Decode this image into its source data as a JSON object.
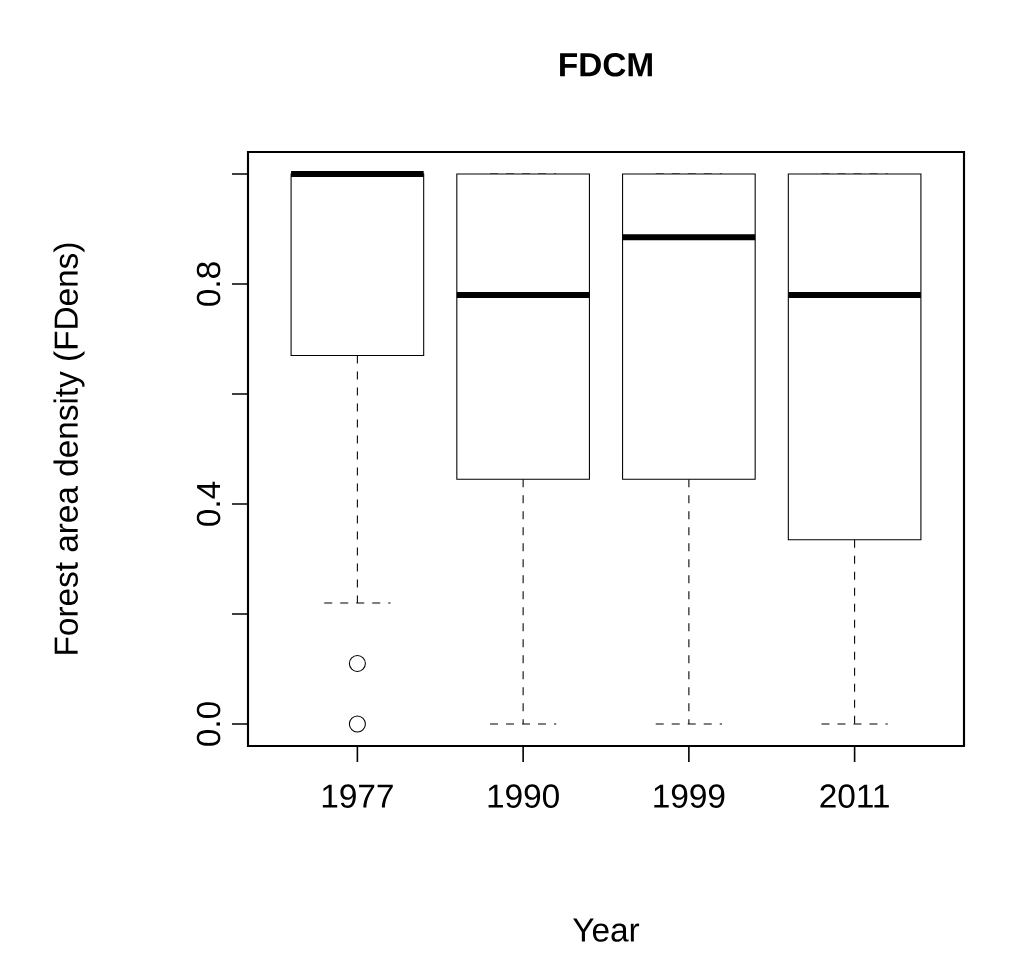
{
  "chart_data": {
    "type": "box",
    "title": "FDCM",
    "xlabel": "Year",
    "ylabel": "Forest area density (FDens)",
    "categories": [
      "1977",
      "1990",
      "1999",
      "2011"
    ],
    "boxes": [
      {
        "low": 0.22,
        "q1": 0.67,
        "median": 1.0,
        "q3": 1.0,
        "high": 1.0,
        "outliers": [
          0.11,
          0.0
        ]
      },
      {
        "low": 0.0,
        "q1": 0.445,
        "median": 0.78,
        "q3": 1.0,
        "high": 1.0
      },
      {
        "low": 0.0,
        "q1": 0.445,
        "median": 0.885,
        "q3": 1.0,
        "high": 1.0
      },
      {
        "low": 0.0,
        "q1": 0.335,
        "median": 0.78,
        "q3": 1.0,
        "high": 1.0
      }
    ],
    "ylim": [
      -0.04,
      1.04
    ],
    "yticks": [
      {
        "value": 0.0,
        "label": "0.0"
      },
      {
        "value": 0.2,
        "label": null
      },
      {
        "value": 0.4,
        "label": "0.4"
      },
      {
        "value": 0.6,
        "label": null
      },
      {
        "value": 0.8,
        "label": "0.8"
      },
      {
        "value": 1.0,
        "label": null
      }
    ]
  }
}
